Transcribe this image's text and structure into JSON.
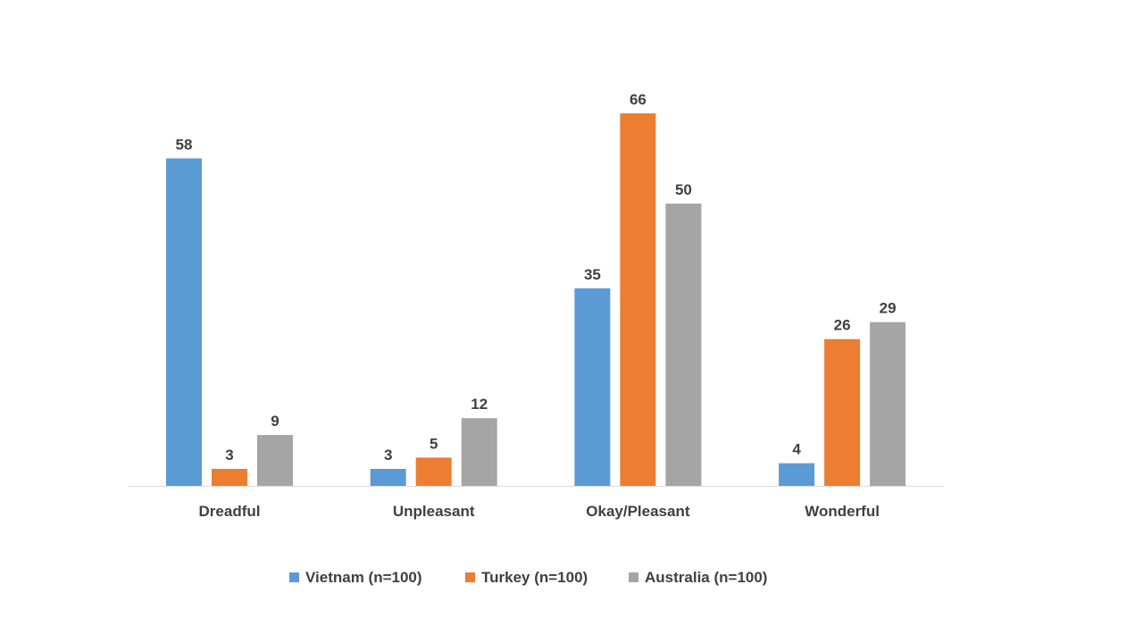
{
  "chart_data": {
    "type": "bar",
    "categories": [
      "Dreadful",
      "Unpleasant",
      "Okay/Pleasant",
      "Wonderful"
    ],
    "series": [
      {
        "name": "Vietnam (n=100)",
        "color": "#5B9BD5",
        "values": [
          58,
          3,
          35,
          4
        ]
      },
      {
        "name": "Turkey (n=100)",
        "color": "#ED7D31",
        "values": [
          3,
          5,
          66,
          26
        ]
      },
      {
        "name": "Australia (n=100)",
        "color": "#A5A5A5",
        "values": [
          9,
          12,
          50,
          29
        ]
      }
    ],
    "ylim": [
      0,
      66
    ],
    "grid": false,
    "legend_position": "bottom",
    "data_labels": true
  }
}
